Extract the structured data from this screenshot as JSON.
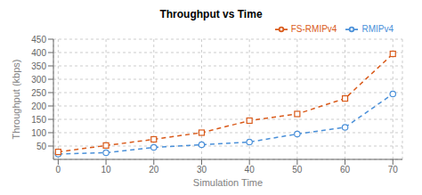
{
  "chart_data": {
    "type": "line",
    "title": "Throughput vs Time",
    "x_label": "Simulation Time",
    "y_label": "Throughput (kbps)",
    "x": [
      0,
      10,
      20,
      30,
      40,
      50,
      60,
      70
    ],
    "series": [
      {
        "name": "RMIPv4",
        "color": "#4a90d9",
        "marker": "circle",
        "line_style": "dashed",
        "values": [
          20,
          25,
          45,
          55,
          65,
          95,
          120,
          245
        ]
      },
      {
        "name": "FS-RMIPv4",
        "color": "#d95a1a",
        "marker": "square",
        "line_style": "dashed",
        "values": [
          28,
          52,
          75,
          100,
          145,
          170,
          228,
          395
        ]
      }
    ],
    "xlim": [
      -1,
      72
    ],
    "ylim": [
      0,
      450
    ],
    "xticks": [
      0,
      10,
      20,
      30,
      40,
      50,
      60,
      70
    ],
    "yticks": [
      50,
      100,
      150,
      200,
      250,
      300,
      350,
      400,
      450
    ],
    "grid": true,
    "legend": "upper right"
  }
}
